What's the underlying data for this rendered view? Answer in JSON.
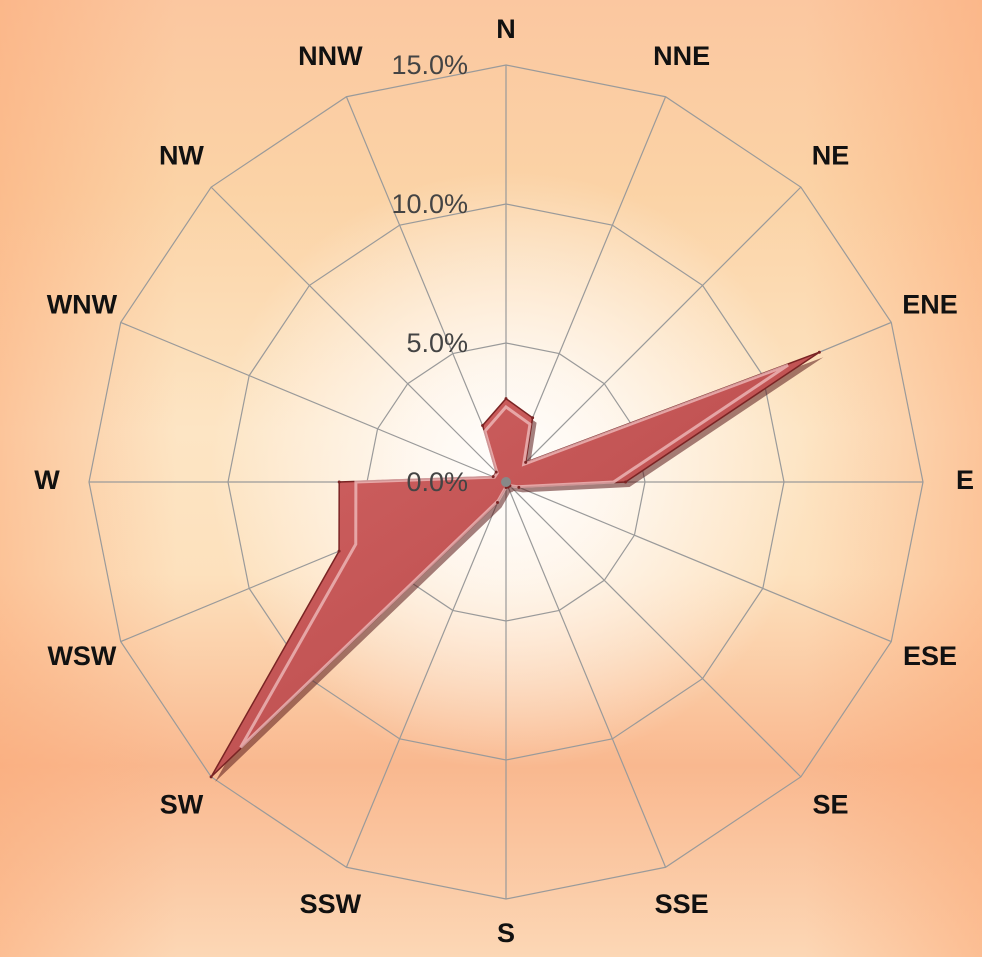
{
  "chart_data": {
    "type": "radar",
    "categories": [
      "N",
      "NNE",
      "NE",
      "ENE",
      "E",
      "ESE",
      "SE",
      "SSE",
      "S",
      "SSW",
      "SW",
      "WSW",
      "W",
      "WNW",
      "NW",
      "NNW"
    ],
    "values": [
      3.0,
      2.5,
      1.0,
      12.2,
      4.3,
      0.5,
      0.2,
      0.2,
      0.2,
      0.8,
      15.0,
      6.5,
      6.0,
      0.5,
      0.5,
      2.2
    ],
    "rlim": [
      0,
      15
    ],
    "ticks": [
      "0.0%",
      "5.0%",
      "10.0%",
      "15.0%"
    ],
    "tick_values": [
      0,
      5,
      10,
      15
    ],
    "grid": true,
    "series_color": "#b84a4a"
  }
}
